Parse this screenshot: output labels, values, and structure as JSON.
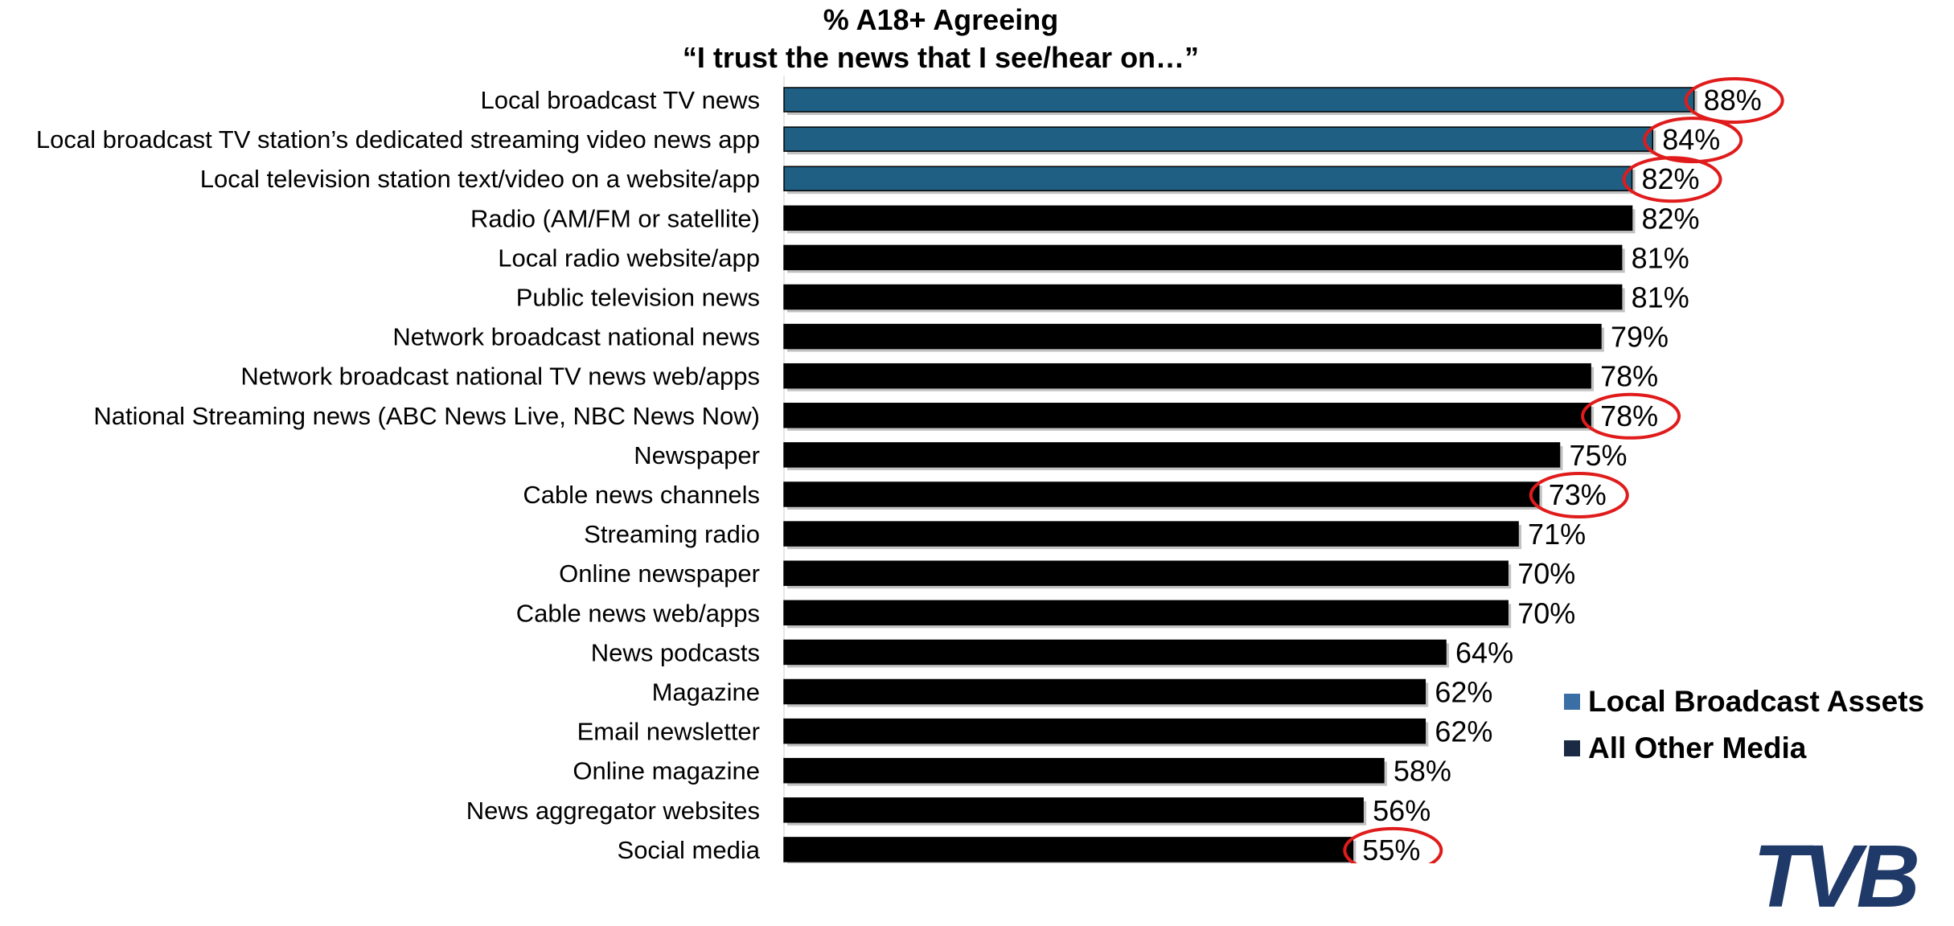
{
  "title_line1": "% A18+ Agreeing",
  "title_line2": "“I trust the news that I see/hear on…”",
  "colors": {
    "local": "#1f5f84",
    "other": "#000000",
    "highlight": "#e01b1b",
    "legend_local": "#3a6fa6",
    "legend_other": "#1a2a44",
    "logo": "#1f3a68"
  },
  "legend": {
    "local_label": "Local Broadcast Assets",
    "other_label": "All Other Media"
  },
  "logo_text": "TVB",
  "chart_data": {
    "type": "bar",
    "orientation": "horizontal",
    "xlim": [
      0,
      100
    ],
    "categories": [
      "Local broadcast TV news",
      "Local broadcast TV station’s dedicated streaming video news app",
      "Local television station text/video on a website/app",
      "Radio (AM/FM or satellite)",
      "Local radio website/app",
      "Public television news",
      "Network broadcast national news",
      "Network broadcast national TV news web/apps",
      "National Streaming news (ABC News Live, NBC News Now)",
      "Newspaper",
      "Cable news channels",
      "Streaming radio",
      "Online newspaper",
      "Cable news web/apps",
      "News podcasts",
      "Magazine",
      "Email newsletter",
      "Online magazine",
      "News aggregator websites",
      "Social media"
    ],
    "values": [
      88,
      84,
      82,
      82,
      81,
      81,
      79,
      78,
      78,
      75,
      73,
      71,
      70,
      70,
      64,
      62,
      62,
      58,
      56,
      55
    ],
    "labels": [
      "88%",
      "84%",
      "82%",
      "82%",
      "81%",
      "81%",
      "79%",
      "78%",
      "78%",
      "75%",
      "73%",
      "71%",
      "70%",
      "70%",
      "64%",
      "62%",
      "62%",
      "58%",
      "56%",
      "55%"
    ],
    "group": [
      "local",
      "local",
      "local",
      "other",
      "other",
      "other",
      "other",
      "other",
      "other",
      "other",
      "other",
      "other",
      "other",
      "other",
      "other",
      "other",
      "other",
      "other",
      "other",
      "other"
    ],
    "circled": [
      true,
      true,
      true,
      false,
      false,
      false,
      false,
      false,
      true,
      false,
      true,
      false,
      false,
      false,
      false,
      false,
      false,
      false,
      false,
      true
    ]
  }
}
